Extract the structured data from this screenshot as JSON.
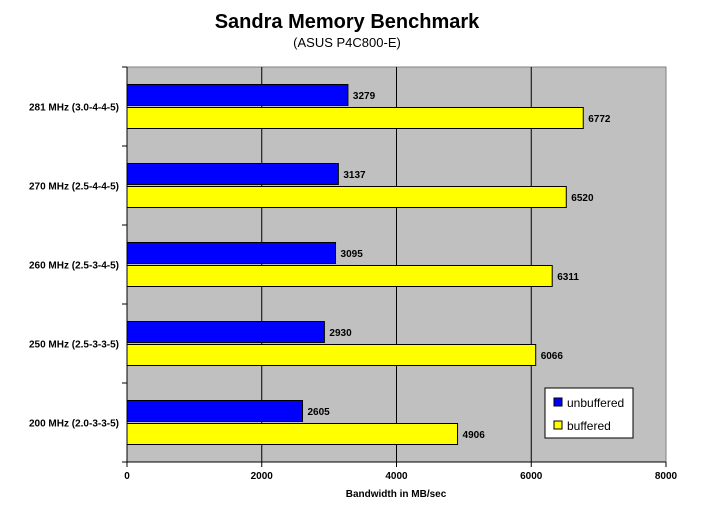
{
  "chart_data": {
    "type": "bar",
    "orientation": "horizontal",
    "title": "Sandra Memory Benchmark",
    "subtitle": "(ASUS P4C800-E)",
    "xlabel": "Bandwidth in MB/sec",
    "ylabel": "",
    "xlim": [
      0,
      8000
    ],
    "xticks": [
      "0",
      "2000",
      "4000",
      "6000",
      "8000"
    ],
    "grid": true,
    "legend_position": "bottom-right",
    "categories": [
      "281 MHz (3.0-4-4-5)",
      "270 MHz (2.5-4-4-5)",
      "260 MHz (2.5-3-4-5)",
      "250 MHz (2.5-3-3-5)",
      "200 MHz (2.0-3-3-5)"
    ],
    "series": [
      {
        "name": "unbuffered",
        "color": "#0000FF",
        "values": [
          3279,
          3137,
          3095,
          2930,
          2605
        ]
      },
      {
        "name": "buffered",
        "color": "#FFFF00",
        "values": [
          6772,
          6520,
          6311,
          6066,
          4906
        ]
      }
    ],
    "plot_background": "#C0C0C0"
  }
}
